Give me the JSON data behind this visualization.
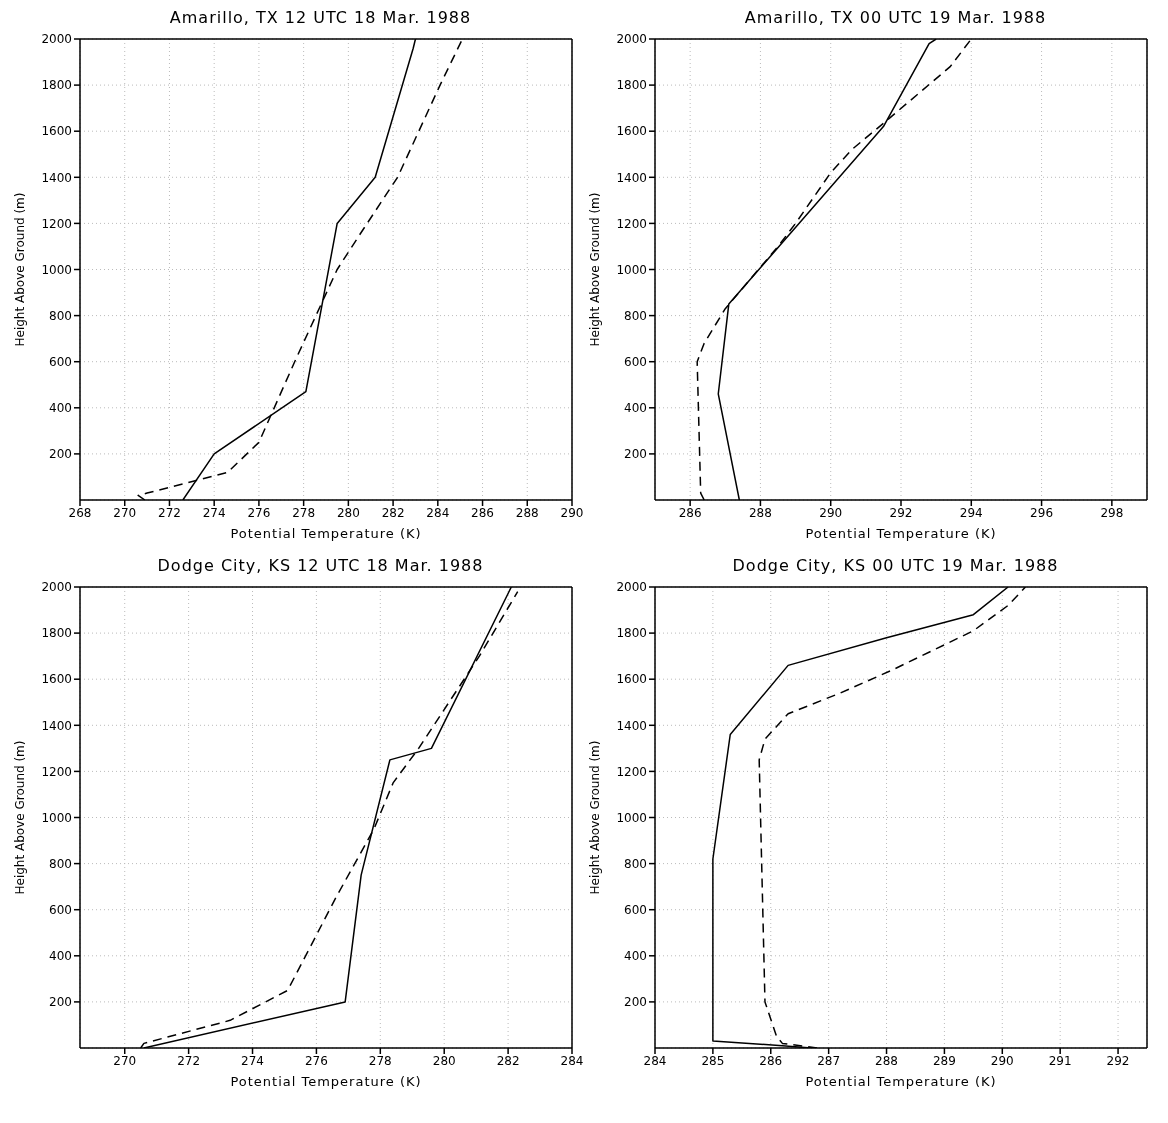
{
  "chart_data": [
    {
      "type": "line",
      "title": "Amarillo, TX 12 UTC 18 Mar. 1988",
      "xlabel": "Potential Temperature (K)",
      "ylabel": "Height Above Ground (m)",
      "xlim": [
        268,
        290
      ],
      "xticks": [
        268,
        270,
        272,
        274,
        276,
        278,
        280,
        282,
        284,
        286,
        288,
        290
      ],
      "ylim": [
        0,
        2000
      ],
      "yticks": [
        200,
        400,
        600,
        800,
        1000,
        1200,
        1400,
        1600,
        1800,
        2000
      ],
      "grid": true,
      "marker": "none",
      "series": [
        {
          "color": "#000000",
          "line_style": "solid",
          "x": [
            272.6,
            274,
            278.1,
            279.5,
            281.2,
            282.9,
            283
          ],
          "values": [
            0,
            200,
            470,
            1200,
            1400,
            1960,
            2000
          ]
        },
        {
          "color": "#000000",
          "line_style": "dashed",
          "x": [
            270.9,
            270.6,
            271,
            274.6,
            276,
            277.6,
            279.5,
            280.5,
            282.2,
            284.1,
            285.1
          ],
          "values": [
            0,
            20,
            30,
            120,
            250,
            600,
            1000,
            1150,
            1400,
            1800,
            2000
          ]
        }
      ]
    },
    {
      "type": "line",
      "title": "Amarillo, TX 00 UTC 19 Mar. 1988",
      "xlabel": "Potential Temperature (K)",
      "ylabel": "Height Above Ground (m)",
      "xlim": [
        285,
        299
      ],
      "xticks": [
        286,
        288,
        290,
        292,
        294,
        296,
        298
      ],
      "ylim": [
        0,
        2000
      ],
      "yticks": [
        200,
        400,
        600,
        800,
        1000,
        1200,
        1400,
        1600,
        1800,
        2000
      ],
      "grid": true,
      "marker": "none",
      "series": [
        {
          "color": "#000000",
          "line_style": "solid",
          "x": [
            287.4,
            286.8,
            287.1,
            291.5,
            292.8,
            293
          ],
          "values": [
            0,
            460,
            850,
            1620,
            1980,
            2000
          ]
        },
        {
          "color": "#000000",
          "line_style": "dashed",
          "x": [
            286.4,
            286.3,
            286.2,
            286.4,
            287,
            288.5,
            289,
            290,
            290.6,
            291.7,
            293.4,
            294
          ],
          "values": [
            0,
            30,
            600,
            680,
            830,
            1100,
            1200,
            1420,
            1520,
            1660,
            1880,
            2000
          ]
        }
      ]
    },
    {
      "type": "line",
      "title": "Dodge City, KS 12 UTC 18 Mar. 1988",
      "xlabel": "Potential Temperature (K)",
      "ylabel": "Height Above Ground (m)",
      "xlim": [
        268.6,
        284
      ],
      "xticks": [
        270,
        272,
        274,
        276,
        278,
        280,
        282,
        284
      ],
      "ylim": [
        0,
        2000
      ],
      "yticks": [
        200,
        400,
        600,
        800,
        1000,
        1200,
        1400,
        1600,
        1800,
        2000
      ],
      "grid": true,
      "marker": "none",
      "series": [
        {
          "color": "#000000",
          "line_style": "solid",
          "x": [
            270.6,
            276.9,
            277.4,
            278.3,
            279.6,
            282.1
          ],
          "values": [
            0,
            200,
            750,
            1250,
            1300,
            2000
          ]
        },
        {
          "color": "#000000",
          "line_style": "dashed",
          "x": [
            270.5,
            270.6,
            273.3,
            275.1,
            276.6,
            277.8,
            278.4,
            279.2,
            281.1,
            282.3
          ],
          "values": [
            0,
            20,
            120,
            250,
            650,
            950,
            1150,
            1300,
            1700,
            1980
          ]
        }
      ]
    },
    {
      "type": "line",
      "title": "Dodge City, KS 00 UTC 19 Mar. 1988",
      "xlabel": "Potential Temperature (K)",
      "ylabel": "Height Above Ground (m)",
      "xlim": [
        284,
        292.5
      ],
      "xticks": [
        284,
        285,
        286,
        287,
        288,
        289,
        290,
        291,
        292
      ],
      "ylim": [
        0,
        2000
      ],
      "yticks": [
        200,
        400,
        600,
        800,
        1000,
        1200,
        1400,
        1600,
        1800,
        2000
      ],
      "grid": true,
      "marker": "none",
      "series": [
        {
          "color": "#000000",
          "line_style": "solid",
          "x": [
            286.7,
            286.2,
            285,
            285,
            285.3,
            286.3,
            288,
            289.5,
            290.1
          ],
          "values": [
            0,
            10,
            30,
            820,
            1360,
            1660,
            1780,
            1880,
            2000
          ]
        },
        {
          "color": "#000000",
          "line_style": "dashed",
          "x": [
            286.8,
            286.2,
            286.1,
            285.9,
            285.8,
            285.9,
            286.3,
            287.2,
            288.1,
            289.5,
            290.1,
            290.4
          ],
          "values": [
            0,
            20,
            50,
            200,
            1250,
            1340,
            1450,
            1540,
            1640,
            1810,
            1920,
            2000
          ]
        }
      ]
    }
  ]
}
